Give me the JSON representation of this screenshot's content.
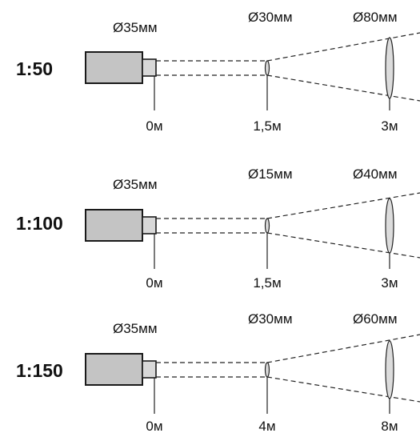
{
  "panels": [
    {
      "ratio": "1:50",
      "source_diameter": "Ø35мм",
      "mid_diameter": "Ø30мм",
      "far_diameter": "Ø80мм",
      "distances": [
        "0м",
        "1,5м",
        "3м"
      ]
    },
    {
      "ratio": "1:100",
      "source_diameter": "Ø35мм",
      "mid_diameter": "Ø15мм",
      "far_diameter": "Ø40мм",
      "distances": [
        "0м",
        "1,5м",
        "3м"
      ]
    },
    {
      "ratio": "1:150",
      "source_diameter": "Ø35мм",
      "mid_diameter": "Ø30мм",
      "far_diameter": "Ø60мм",
      "distances": [
        "0м",
        "4м",
        "8м"
      ]
    }
  ],
  "colors": {
    "projector_body": "#c4c4c4",
    "outline": "#1a1a1a",
    "background": "#ffffff"
  }
}
